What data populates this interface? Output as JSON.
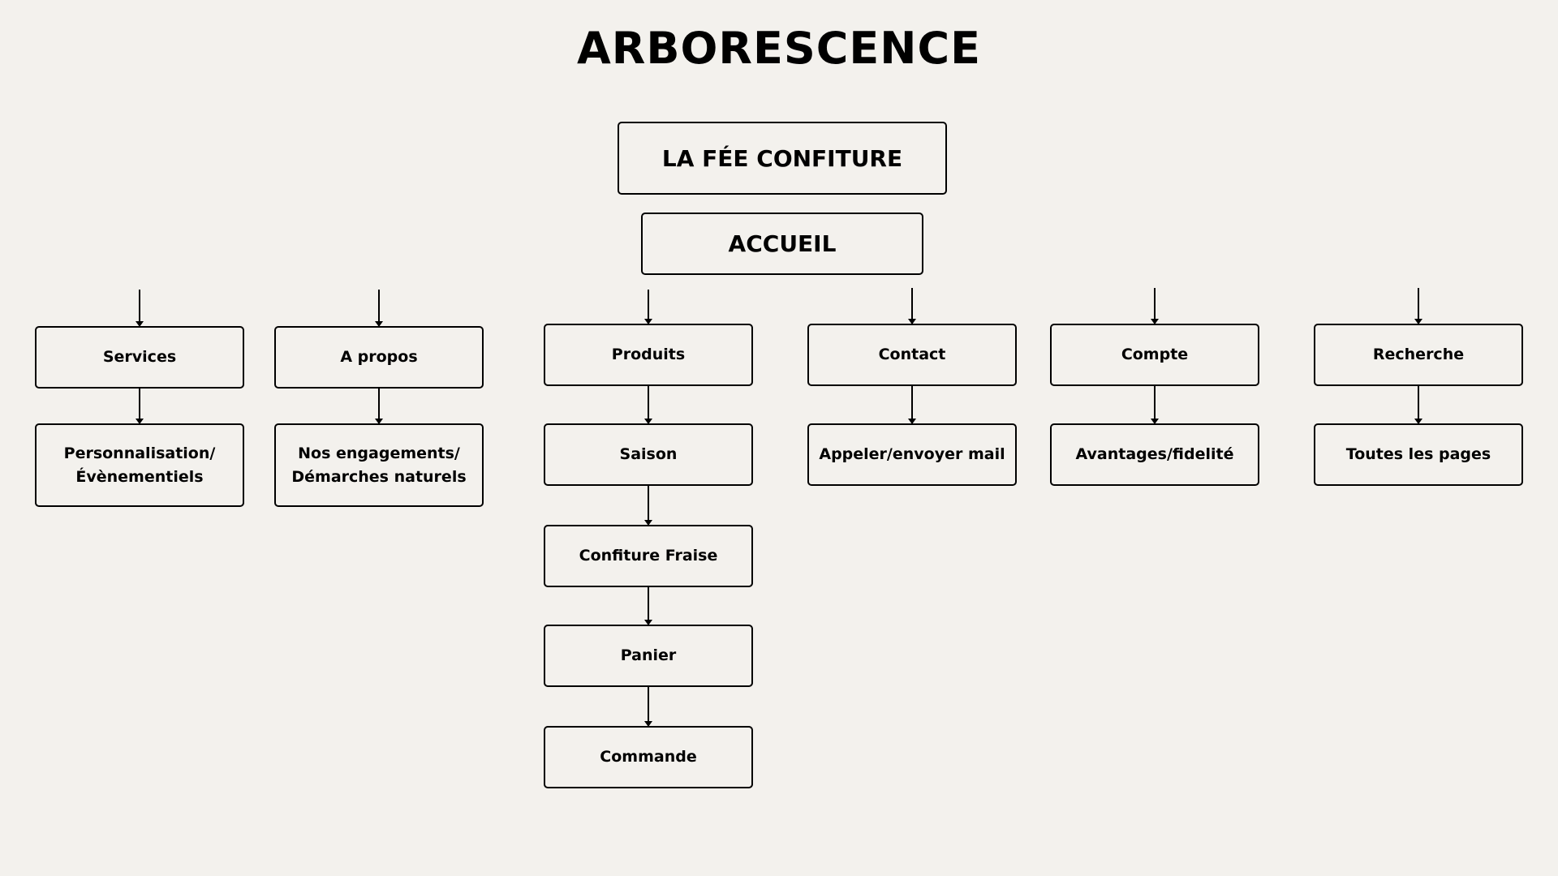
{
  "title": "ARBORESCENCE",
  "nodes": {
    "root": "LA FÉE CONFITURE",
    "accueil": "ACCUEIL",
    "services": "Services",
    "a_propos": "A propos",
    "produits": "Produits",
    "contact": "Contact",
    "compte": "Compte",
    "recherche": "Recherche",
    "personnalisation": "Personnalisation/\nÉvènementiels",
    "engagements": "Nos engagements/\nDémarches naturels",
    "saison": "Saison",
    "appeler": "Appeler/envoyer mail",
    "avantages": "Avantages/fidelité",
    "toutes_pages": "Toutes les pages",
    "confiture_fraise": "Confiture Fraise",
    "panier": "Panier",
    "commande": "Commande"
  },
  "edges": [
    [
      "accueil",
      "services"
    ],
    [
      "accueil",
      "a_propos"
    ],
    [
      "accueil",
      "produits"
    ],
    [
      "accueil",
      "contact"
    ],
    [
      "accueil",
      "compte"
    ],
    [
      "accueil",
      "recherche"
    ],
    [
      "services",
      "personnalisation"
    ],
    [
      "a_propos",
      "engagements"
    ],
    [
      "produits",
      "saison"
    ],
    [
      "contact",
      "appeler"
    ],
    [
      "compte",
      "avantages"
    ],
    [
      "recherche",
      "toutes_pages"
    ],
    [
      "saison",
      "confiture_fraise"
    ],
    [
      "confiture_fraise",
      "panier"
    ],
    [
      "panier",
      "commande"
    ]
  ]
}
